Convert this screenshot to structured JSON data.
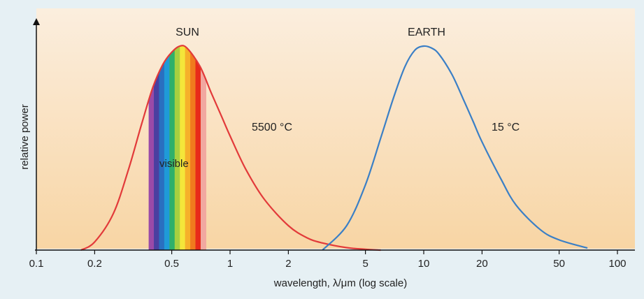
{
  "chart_data": {
    "type": "line",
    "x_scale": "log",
    "xlabel": "wavelength, λ/μm (log scale)",
    "ylabel": "relative power",
    "xlim": [
      0.1,
      100
    ],
    "ylim": [
      0,
      1
    ],
    "x_ticks": [
      0.1,
      0.2,
      0.5,
      1,
      2,
      5,
      10,
      20,
      50,
      100
    ],
    "x_tick_labels": [
      "0.1",
      "0.2",
      "0.5",
      "1",
      "2",
      "5",
      "10",
      "20",
      "50",
      "100"
    ],
    "grid": false,
    "series": [
      {
        "name": "SUN",
        "annotation": "5500 °C",
        "color": "#e23a3a",
        "peak_um": 0.6,
        "x": [
          0.17,
          0.2,
          0.25,
          0.3,
          0.35,
          0.4,
          0.45,
          0.5,
          0.55,
          0.6,
          0.7,
          0.8,
          0.9,
          1.0,
          1.2,
          1.5,
          2.0,
          2.5,
          3.0,
          4.0,
          5.0,
          6.0
        ],
        "y": [
          0.0,
          0.04,
          0.18,
          0.4,
          0.62,
          0.8,
          0.91,
          0.97,
          1.0,
          0.99,
          0.9,
          0.77,
          0.66,
          0.56,
          0.4,
          0.25,
          0.12,
          0.06,
          0.035,
          0.012,
          0.004,
          0.0
        ]
      },
      {
        "name": "EARTH",
        "annotation": "15 °C",
        "color": "#3a7fc6",
        "peak_um": 10,
        "x": [
          3.0,
          4.0,
          5.0,
          6.0,
          7.0,
          8.0,
          9.0,
          10.0,
          11.0,
          12.0,
          14.0,
          16.0,
          18.0,
          20.0,
          25.0,
          30.0,
          40.0,
          50.0,
          70.0
        ],
        "y": [
          0.0,
          0.12,
          0.32,
          0.55,
          0.75,
          0.9,
          0.98,
          1.0,
          0.99,
          0.96,
          0.86,
          0.74,
          0.63,
          0.53,
          0.35,
          0.22,
          0.1,
          0.05,
          0.01
        ]
      }
    ],
    "visible_band": {
      "label": "visible",
      "range_um": [
        0.38,
        0.75
      ],
      "colors": [
        "#9a4aa8",
        "#4a3fa0",
        "#2a6fc0",
        "#1f9ad8",
        "#2fb06a",
        "#a8d040",
        "#f4e63a",
        "#f6b02a",
        "#f07a1e",
        "#e82a1a",
        "#f1a8a0"
      ]
    },
    "background_gradient": [
      "#fbeede",
      "#f8d5a4"
    ]
  }
}
